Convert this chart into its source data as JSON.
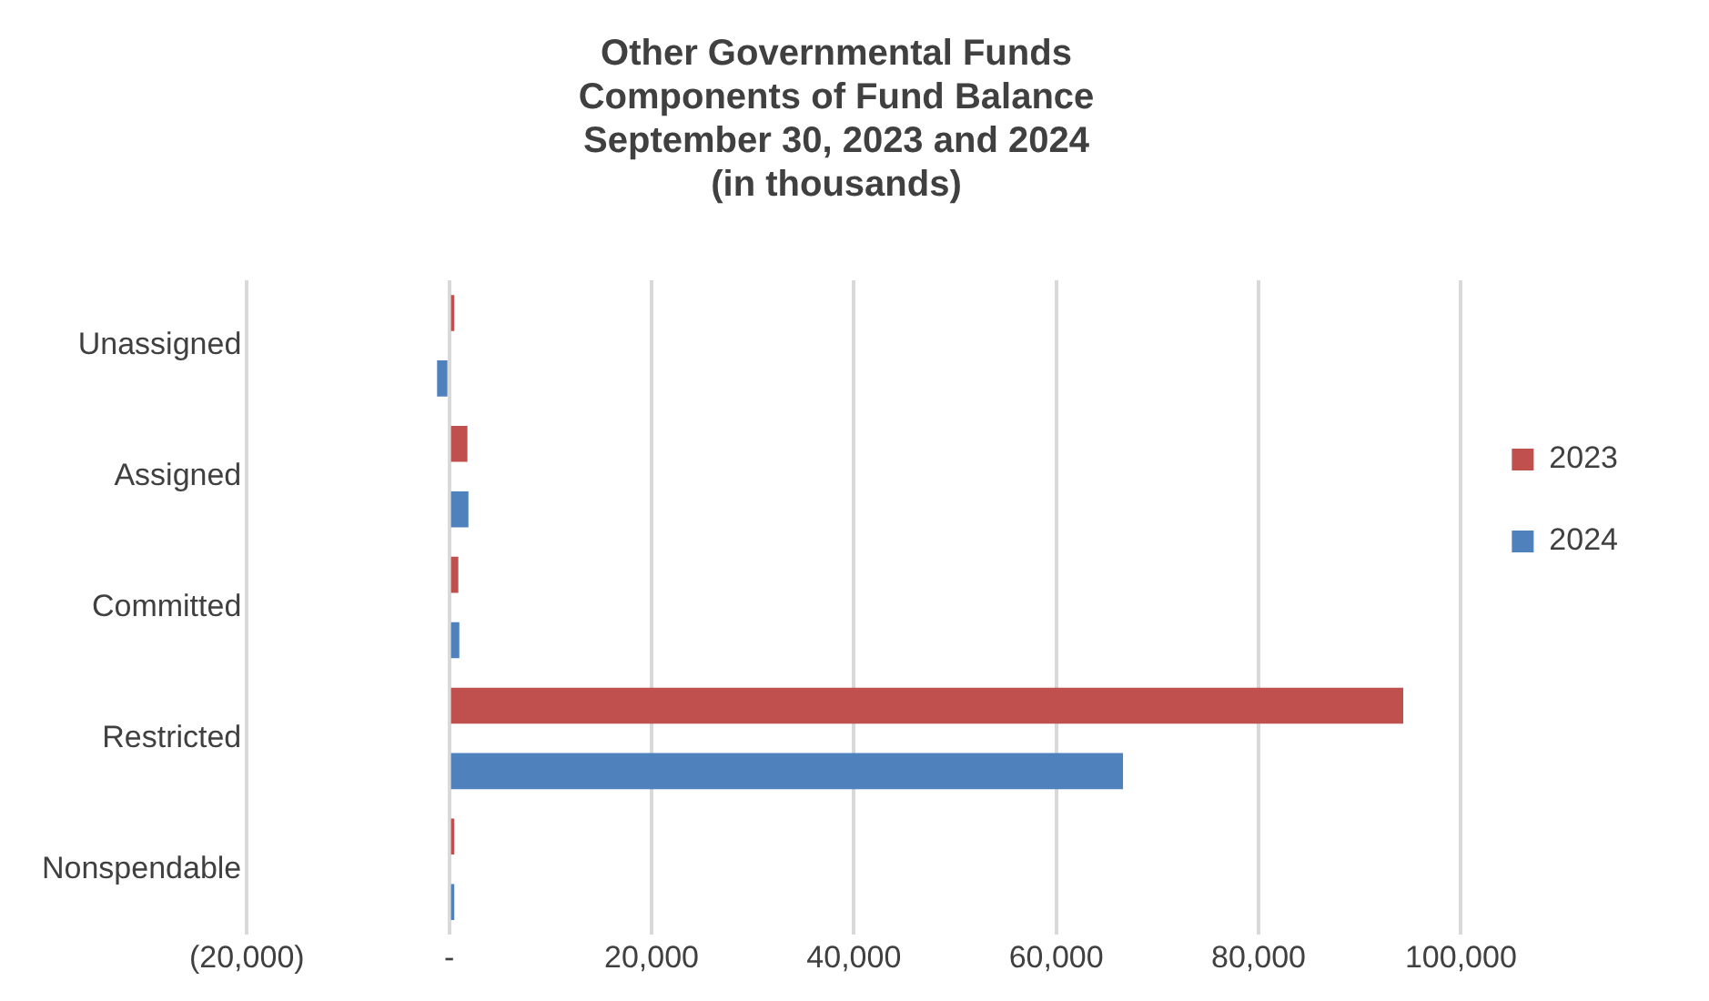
{
  "chart_data": {
    "type": "bar",
    "orientation": "horizontal",
    "title": [
      "Other Governmental Funds",
      "Components of Fund Balance",
      "September 30, 2023 and 2024",
      "(in thousands)"
    ],
    "categories": [
      "Unassigned",
      "Assigned",
      "Committed",
      "Restricted",
      "Nonspendable"
    ],
    "series": [
      {
        "name": "2023",
        "color": "#c0504d",
        "values": [
          500,
          1800,
          900,
          94300,
          500
        ]
      },
      {
        "name": "2024",
        "color": "#4f81bd",
        "values": [
          -1200,
          1900,
          1000,
          66600,
          500
        ]
      }
    ],
    "xlim": [
      -20000,
      100000
    ],
    "xticks": [
      {
        "value": -20000,
        "label": "(20,000)"
      },
      {
        "value": 0,
        "label": "-"
      },
      {
        "value": 20000,
        "label": "20,000"
      },
      {
        "value": 40000,
        "label": "40,000"
      },
      {
        "value": 60000,
        "label": "60,000"
      },
      {
        "value": 80000,
        "label": "80,000"
      },
      {
        "value": 100000,
        "label": "100,000"
      }
    ],
    "grid": "x",
    "legend": "right"
  }
}
